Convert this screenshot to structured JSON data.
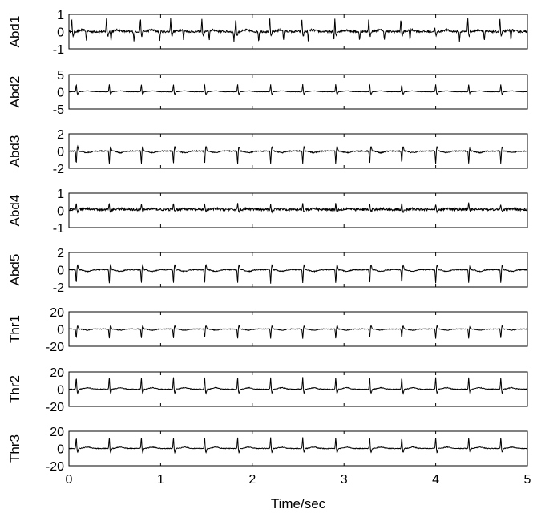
{
  "chart_data": {
    "type": "line",
    "xlabel": "Time/sec",
    "xlim": [
      0,
      5
    ],
    "xticks": [
      0,
      1,
      2,
      3,
      4,
      5
    ],
    "grid": false,
    "series": [
      {
        "name": "Abd1",
        "ylim": [
          -1,
          1
        ],
        "yticks": [
          -1,
          0,
          1
        ],
        "baseline": 0.0,
        "beats_maternal": [
          0.03,
          0.41,
          0.78,
          1.11,
          1.45,
          1.82,
          2.19,
          2.54,
          2.9,
          3.27,
          3.62,
          3.99,
          4.35,
          4.7
        ],
        "beats_fetal": [
          0.19,
          0.46,
          0.71,
          0.99,
          1.25,
          1.53,
          1.8,
          2.07,
          2.34,
          2.61,
          2.89,
          3.17,
          3.44,
          3.72,
          3.99,
          4.26,
          4.53,
          4.82
        ],
        "maternal_amp": 0.75,
        "fetal_amp": 0.55,
        "noise": 0.06
      },
      {
        "name": "Abd2",
        "ylim": [
          -5,
          5
        ],
        "yticks": [
          -5,
          0,
          5
        ],
        "baseline": 0.0,
        "beats_maternal": [
          0.08,
          0.44,
          0.79,
          1.14,
          1.48,
          1.84,
          2.2,
          2.55,
          2.91,
          3.28,
          3.63,
          4.0,
          4.36,
          4.71
        ],
        "maternal_amp": 2.2,
        "fetal_amp": 0.0,
        "noise": 0.05
      },
      {
        "name": "Abd3",
        "ylim": [
          -2,
          2
        ],
        "yticks": [
          -2,
          0,
          2
        ],
        "baseline": 0.0,
        "beats_maternal": [
          0.08,
          0.44,
          0.79,
          1.14,
          1.48,
          1.84,
          2.2,
          2.55,
          2.91,
          3.28,
          3.63,
          4.0,
          4.36,
          4.71
        ],
        "maternal_amp": -1.5,
        "fetal_amp": 0.3,
        "noise": 0.06
      },
      {
        "name": "Abd4",
        "ylim": [
          -1,
          1
        ],
        "yticks": [
          -1,
          0,
          1
        ],
        "baseline": 0.05,
        "beats_maternal": [
          0.08,
          0.44,
          0.79,
          1.14,
          1.48,
          1.84,
          2.2,
          2.55,
          2.91,
          3.28,
          3.63,
          4.0,
          4.36,
          4.71
        ],
        "maternal_amp": 0.35,
        "fetal_amp": 0.2,
        "noise": 0.07
      },
      {
        "name": "Abd5",
        "ylim": [
          -2,
          2
        ],
        "yticks": [
          -2,
          0,
          2
        ],
        "baseline": 0.0,
        "beats_maternal": [
          0.08,
          0.44,
          0.79,
          1.14,
          1.48,
          1.84,
          2.2,
          2.55,
          2.91,
          3.28,
          3.63,
          4.0,
          4.36,
          4.71
        ],
        "maternal_amp": -1.6,
        "fetal_amp": 0.25,
        "noise": 0.05
      },
      {
        "name": "Thr1",
        "ylim": [
          -20,
          20
        ],
        "yticks": [
          -20,
          0,
          20
        ],
        "baseline": 0.0,
        "beats_maternal": [
          0.08,
          0.44,
          0.79,
          1.14,
          1.48,
          1.84,
          2.2,
          2.55,
          2.91,
          3.28,
          3.63,
          4.0,
          4.36,
          4.71
        ],
        "maternal_amp": -11,
        "fetal_amp": 0.0,
        "noise": 0.4
      },
      {
        "name": "Thr2",
        "ylim": [
          -20,
          20
        ],
        "yticks": [
          -20,
          0,
          20
        ],
        "baseline": 0.0,
        "beats_maternal": [
          0.08,
          0.44,
          0.79,
          1.14,
          1.48,
          1.84,
          2.2,
          2.55,
          2.91,
          3.28,
          3.63,
          4.0,
          4.36,
          4.71
        ],
        "maternal_amp": 14,
        "fetal_amp": 0.0,
        "noise": 0.4
      },
      {
        "name": "Thr3",
        "ylim": [
          -20,
          20
        ],
        "yticks": [
          -20,
          0,
          20
        ],
        "baseline": 0.0,
        "beats_maternal": [
          0.08,
          0.44,
          0.79,
          1.14,
          1.48,
          1.84,
          2.2,
          2.55,
          2.91,
          3.28,
          3.63,
          4.0,
          4.36,
          4.71
        ],
        "maternal_amp": 13,
        "fetal_amp": 0.0,
        "noise": 0.4
      }
    ]
  }
}
